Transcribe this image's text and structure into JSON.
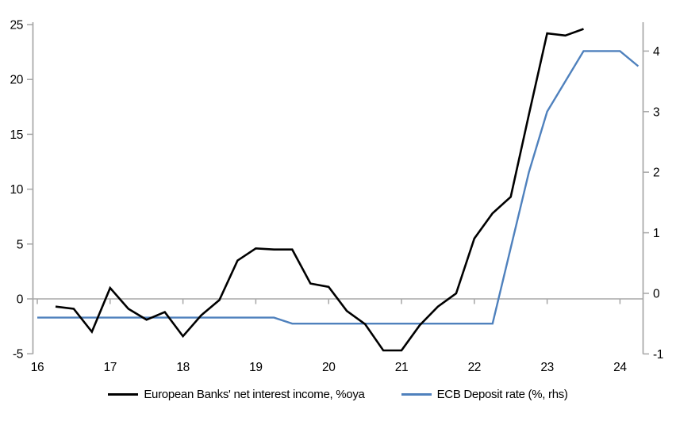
{
  "chart_data": {
    "type": "line",
    "title": "",
    "x_axis": {
      "ticks": [
        16,
        17,
        18,
        19,
        20,
        21,
        22,
        23,
        24
      ],
      "range": [
        16,
        24.35
      ]
    },
    "left_axis": {
      "ticks": [
        -5,
        0,
        5,
        10,
        15,
        20,
        25
      ],
      "range": [
        -5,
        25.2
      ]
    },
    "right_axis": {
      "ticks": [
        -1,
        0,
        1,
        2,
        3,
        4
      ],
      "range": [
        -1,
        4.48
      ]
    },
    "grid": "zero-line-only",
    "legend_position": "bottom-center",
    "series": [
      {
        "name": "European Banks' net interest income, %oya",
        "axis": "left",
        "color": "#000000",
        "x": [
          16.25,
          16.5,
          16.75,
          17.0,
          17.25,
          17.5,
          17.75,
          18.0,
          18.25,
          18.5,
          18.75,
          19.0,
          19.25,
          19.5,
          19.75,
          20.0,
          20.25,
          20.5,
          20.75,
          21.0,
          21.25,
          21.5,
          21.75,
          22.0,
          22.25,
          22.5,
          22.75,
          23.0,
          23.25,
          23.5
        ],
        "values": [
          -0.7,
          -0.9,
          -3.0,
          1.0,
          -0.9,
          -1.9,
          -1.2,
          -3.4,
          -1.5,
          -0.1,
          3.5,
          4.6,
          4.5,
          4.5,
          1.4,
          1.1,
          -1.1,
          -2.3,
          -4.7,
          -4.7,
          -2.4,
          -0.7,
          0.5,
          5.5,
          7.8,
          9.3,
          16.8,
          24.2,
          24.0,
          24.6
        ]
      },
      {
        "name": "ECB Deposit rate (%, rhs)",
        "axis": "right",
        "color": "#4f81bd",
        "x": [
          16.0,
          16.25,
          16.5,
          16.75,
          17.0,
          17.25,
          17.5,
          17.75,
          18.0,
          18.25,
          18.5,
          18.75,
          19.0,
          19.25,
          19.5,
          19.75,
          20.0,
          20.25,
          20.5,
          20.75,
          21.0,
          21.25,
          21.5,
          21.75,
          22.0,
          22.25,
          22.5,
          22.75,
          23.0,
          23.25,
          23.5,
          23.75,
          24.0,
          24.25
        ],
        "values": [
          -0.4,
          -0.4,
          -0.4,
          -0.4,
          -0.4,
          -0.4,
          -0.4,
          -0.4,
          -0.4,
          -0.4,
          -0.4,
          -0.4,
          -0.4,
          -0.4,
          -0.5,
          -0.5,
          -0.5,
          -0.5,
          -0.5,
          -0.5,
          -0.5,
          -0.5,
          -0.5,
          -0.5,
          -0.5,
          -0.5,
          0.75,
          2.0,
          3.0,
          3.5,
          4.0,
          4.0,
          4.0,
          3.75
        ]
      }
    ]
  },
  "legend": {
    "series1_label": "European Banks' net interest income, %oya",
    "series2_label": "ECB Deposit rate (%, rhs)"
  },
  "colors": {
    "series1": "#000000",
    "series2": "#4f81bd",
    "axis": "#a6a6a6",
    "zero_line": "#b5b5b5",
    "text": "#000000",
    "background": "#ffffff"
  }
}
